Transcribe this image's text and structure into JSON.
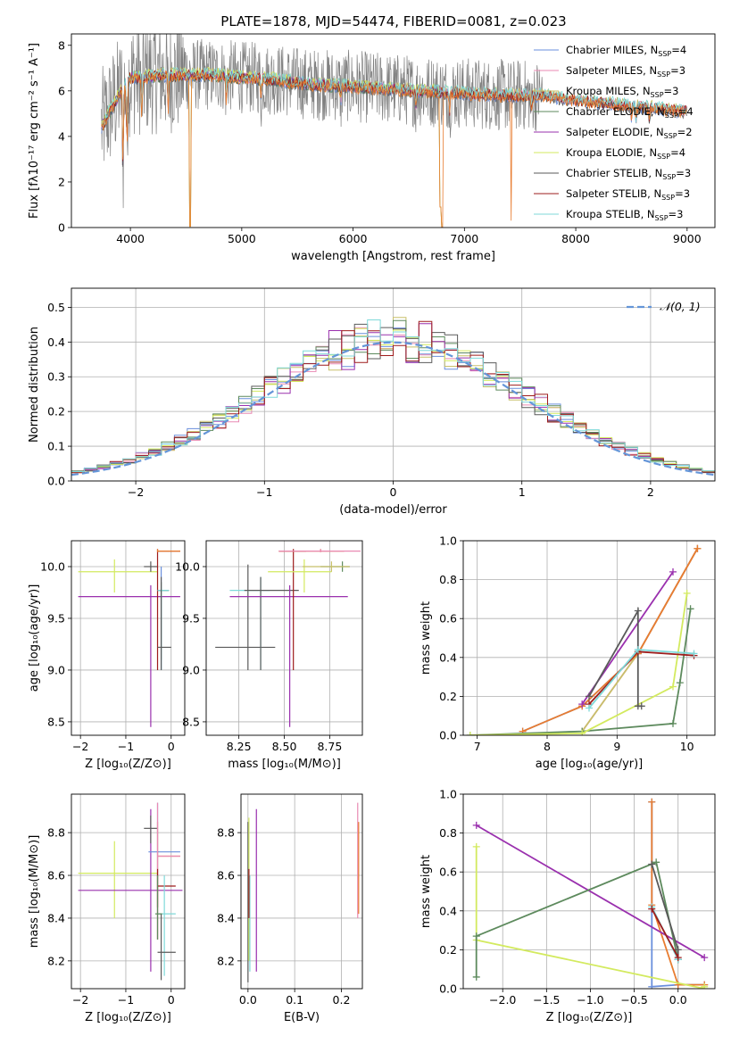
{
  "colors": {
    "chabrier_miles": "#6a8fdc",
    "salpeter_miles": "#e98ab3",
    "kroupa_miles": "#c8c06a",
    "chabrier_elodie": "#5d8a5d",
    "salpeter_elodie": "#9a30ae",
    "kroupa_elodie": "#d3ea5f",
    "chabrier_stelib": "#5a5a5a",
    "salpeter_stelib": "#9e1c1c",
    "kroupa_stelib": "#7fd9d9",
    "data": "#808080",
    "model": "#e87c30",
    "normal": "#6495d8",
    "grid": "#b0b0b0"
  },
  "chart_data": [
    {
      "id": "spectrum",
      "type": "line",
      "title": "PLATE=1878, MJD=54474, FIBERID=0081, z=0.023",
      "xlabel": "wavelength [Angstrom, rest frame]",
      "ylabel": "Flux [fλ10⁻¹⁷ erg cm⁻² s⁻¹ A⁻¹]",
      "xlim": [
        3470,
        9250
      ],
      "ylim": [
        0,
        8.5
      ],
      "x_ticks": [
        4000,
        5000,
        6000,
        7000,
        8000,
        9000
      ],
      "y_ticks": [
        0,
        2,
        4,
        6,
        8
      ],
      "grid": false,
      "legend_position": "top-right",
      "legend": [
        {
          "label": "Chabrier MILES, N",
          "sub": "SSP",
          "tail": "=4",
          "color_key": "chabrier_miles"
        },
        {
          "label": "Salpeter MILES, N",
          "sub": "SSP",
          "tail": "=3",
          "color_key": "salpeter_miles"
        },
        {
          "label": "Kroupa MILES, N",
          "sub": "SSP",
          "tail": "=3",
          "color_key": "kroupa_miles"
        },
        {
          "label": "Chabrier ELODIE, N",
          "sub": "SSP",
          "tail": "=4",
          "color_key": "chabrier_elodie"
        },
        {
          "label": "Salpeter ELODIE, N",
          "sub": "SSP",
          "tail": "=2",
          "color_key": "salpeter_elodie"
        },
        {
          "label": "Kroupa ELODIE, N",
          "sub": "SSP",
          "tail": "=4",
          "color_key": "kroupa_elodie"
        },
        {
          "label": "Chabrier STELIB, N",
          "sub": "SSP",
          "tail": "=3",
          "color_key": "chabrier_stelib"
        },
        {
          "label": "Salpeter STELIB, N",
          "sub": "SSP",
          "tail": "=3",
          "color_key": "salpeter_stelib"
        },
        {
          "label": "Kroupa STELIB, N",
          "sub": "SSP",
          "tail": "=3",
          "color_key": "kroupa_stelib"
        }
      ],
      "continuum": [
        [
          3740,
          5.6
        ],
        [
          3800,
          5.9
        ],
        [
          3900,
          6.3
        ],
        [
          4000,
          6.6
        ],
        [
          4100,
          6.6
        ],
        [
          4300,
          6.7
        ],
        [
          4500,
          6.7
        ],
        [
          4800,
          6.7
        ],
        [
          5000,
          6.6
        ],
        [
          5300,
          6.5
        ],
        [
          5600,
          6.3
        ],
        [
          6000,
          6.2
        ],
        [
          6300,
          6.1
        ],
        [
          6600,
          6.0
        ],
        [
          7000,
          5.9
        ],
        [
          7400,
          5.8
        ],
        [
          7700,
          5.8
        ],
        [
          8000,
          5.6
        ],
        [
          8400,
          5.4
        ],
        [
          8800,
          5.2
        ],
        [
          9000,
          5.1
        ]
      ],
      "absorption_features": [
        [
          3934,
          3.5
        ],
        [
          3969,
          3.0
        ],
        [
          4102,
          1.6
        ],
        [
          4340,
          1.4
        ],
        [
          4861,
          1.0
        ],
        [
          5175,
          0.8
        ],
        [
          5890,
          0.6
        ],
        [
          6563,
          0.6
        ],
        [
          6867,
          0.8
        ],
        [
          7600,
          0.8
        ],
        [
          8500,
          0.5
        ],
        [
          8542,
          0.6
        ],
        [
          8662,
          0.5
        ]
      ],
      "spikes": [
        [
          4535,
          0.05
        ],
        [
          6785,
          0.9
        ],
        [
          6800,
          0.0
        ],
        [
          7420,
          0.3
        ]
      ]
    },
    {
      "id": "residuals",
      "type": "histogram",
      "xlabel": "(data-model)/error",
      "ylabel": "Normed distribution",
      "xlim": [
        -2.5,
        2.5
      ],
      "ylim": [
        0,
        0.555
      ],
      "x_ticks": [
        -2,
        -1,
        0,
        1,
        2
      ],
      "y_ticks": [
        0.0,
        0.1,
        0.2,
        0.3,
        0.4,
        0.5
      ],
      "grid": true,
      "legend_position": "top-right",
      "legend": [
        {
          "label": "𝒩(0, 1)",
          "color_key": "normal"
        }
      ],
      "bin_width": 0.1,
      "bin_start": -2.5,
      "base_curve": "normal(0,1)",
      "series_keys": [
        "chabrier_miles",
        "salpeter_miles",
        "kroupa_miles",
        "chabrier_elodie",
        "salpeter_elodie",
        "kroupa_elodie",
        "chabrier_stelib",
        "salpeter_stelib",
        "kroupa_stelib"
      ]
    },
    {
      "id": "age_vs_z",
      "type": "errorbar",
      "xlabel": "Z [log₁₀(Z/Z⊙)]",
      "ylabel": "age  [log₁₀(age/yr)]",
      "xlim": [
        -2.2,
        0.3
      ],
      "ylim": [
        8.37,
        10.25
      ],
      "x_ticks": [
        -2,
        -1,
        0
      ],
      "y_ticks": [
        8.5,
        9.0,
        9.5,
        10.0
      ],
      "grid": true,
      "points": [
        {
          "key": "kroupa_elodie",
          "x": -1.25,
          "y": 9.95,
          "xl": -2.05,
          "xh": -0.3,
          "yl": 9.75,
          "yh": 10.07
        },
        {
          "key": "salpeter_elodie",
          "x": -0.45,
          "y": 9.71,
          "xl": -2.05,
          "xh": 0.2,
          "yl": 8.45,
          "yh": 9.82
        },
        {
          "key": "chabrier_stelib",
          "x": -0.45,
          "y": 10.0,
          "xl": -0.6,
          "xh": -0.3,
          "yl": 9.95,
          "yh": 10.05
        },
        {
          "key": "salpeter_stelib",
          "x": -0.3,
          "y": 10.15,
          "xl": -0.3,
          "xh": 0.2,
          "yl": 9.0,
          "yh": 10.17
        },
        {
          "key": "model",
          "x": -0.3,
          "y": 10.15,
          "xl": -0.3,
          "xh": 0.2,
          "yl": 10.14,
          "yh": 10.17
        },
        {
          "key": "chabrier_miles",
          "x": -0.22,
          "y": 9.77,
          "xl": -0.3,
          "xh": -0.05,
          "yl": 9.0,
          "yh": 10.0
        },
        {
          "key": "chabrier_elodie",
          "x": -0.22,
          "y": 9.77,
          "xl": -0.3,
          "xh": -0.05,
          "yl": 9.1,
          "yh": 9.85
        },
        {
          "key": "kroupa_stelib",
          "x": -0.22,
          "y": 9.77,
          "xl": -0.3,
          "xh": -0.05,
          "yl": 9.0,
          "yh": 9.8
        },
        {
          "key": "chabrier_stelib",
          "x": -0.22,
          "y": 9.22,
          "xl": -0.3,
          "xh": 0.0,
          "yl": 9.0,
          "yh": 9.9
        }
      ]
    },
    {
      "id": "age_vs_mass",
      "type": "errorbar",
      "xlabel": "mass [log₁₀(M/M⊙)]",
      "ylabel": "",
      "xlim": [
        8.07,
        8.93
      ],
      "ylim": [
        8.37,
        10.25
      ],
      "x_ticks": [
        8.25,
        8.5,
        8.75
      ],
      "y_ticks": [
        8.5,
        9.0,
        9.5,
        10.0
      ],
      "grid": true,
      "points": [
        {
          "key": "chabrier_stelib",
          "x": 8.3,
          "y": 9.22,
          "xl": 8.12,
          "xh": 8.45,
          "yl": 9.0,
          "yh": 10.02
        },
        {
          "key": "kroupa_stelib",
          "x": 8.37,
          "y": 9.77,
          "xl": 8.2,
          "xh": 8.42,
          "yl": 9.0,
          "yh": 9.9
        },
        {
          "key": "chabrier_stelib",
          "x": 8.37,
          "y": 9.77,
          "xl": 8.28,
          "xh": 8.58,
          "yl": 9.0,
          "yh": 9.9
        },
        {
          "key": "salpeter_elodie",
          "x": 8.53,
          "y": 9.71,
          "xl": 8.2,
          "xh": 8.85,
          "yl": 8.45,
          "yh": 9.82
        },
        {
          "key": "salpeter_stelib",
          "x": 8.55,
          "y": 10.15,
          "xl": 8.47,
          "xh": 8.62,
          "yl": 9.0,
          "yh": 10.17
        },
        {
          "key": "kroupa_elodie",
          "x": 8.61,
          "y": 9.95,
          "xl": 8.41,
          "xh": 8.76,
          "yl": 9.75,
          "yh": 10.07
        },
        {
          "key": "model",
          "x": 8.7,
          "y": 10.15,
          "xl": 8.47,
          "xh": 8.83,
          "yl": 10.14,
          "yh": 10.17
        },
        {
          "key": "salpeter_miles",
          "x": 8.7,
          "y": 10.15,
          "xl": 8.47,
          "xh": 8.92,
          "yl": 10.14,
          "yh": 10.17
        },
        {
          "key": "chabrier_elodie",
          "x": 8.82,
          "y": 10.0,
          "xl": 8.7,
          "xh": 8.86,
          "yl": 9.95,
          "yh": 10.05
        },
        {
          "key": "kroupa_miles",
          "x": 8.76,
          "y": 10.0,
          "xl": 8.6,
          "xh": 8.86,
          "yl": 9.95,
          "yh": 10.05
        }
      ]
    },
    {
      "id": "weight_vs_age",
      "type": "line",
      "xlabel": "age  [log₁₀(age/yr)]",
      "ylabel": "mass weight",
      "xlim": [
        6.8,
        10.4
      ],
      "ylim": [
        0.0,
        1.0
      ],
      "x_ticks": [
        7,
        8,
        9,
        10
      ],
      "y_ticks": [
        0.0,
        0.2,
        0.4,
        0.6,
        0.8,
        1.0
      ],
      "grid": true,
      "series": [
        {
          "key": "chabrier_miles",
          "x": [
            7.65,
            8.5,
            9.3,
            10.15
          ],
          "y": [
            0.02,
            0.15,
            0.42,
            0.96
          ]
        },
        {
          "key": "salpeter_miles",
          "x": [
            8.5,
            9.3,
            10.15
          ],
          "y": [
            0.02,
            0.42,
            0.96
          ]
        },
        {
          "key": "kroupa_miles",
          "x": [
            8.5,
            9.3,
            10.15
          ],
          "y": [
            0.02,
            0.42,
            0.96
          ]
        },
        {
          "key": "model",
          "x": [
            7.65,
            8.5,
            9.3,
            10.15
          ],
          "y": [
            0.02,
            0.15,
            0.42,
            0.96
          ]
        },
        {
          "key": "chabrier_elodie",
          "x": [
            6.9,
            8.5,
            9.8,
            9.9,
            10.05
          ],
          "y": [
            0.0,
            0.02,
            0.06,
            0.27,
            0.65
          ]
        },
        {
          "key": "salpeter_elodie",
          "x": [
            8.5,
            9.8
          ],
          "y": [
            0.16,
            0.84
          ]
        },
        {
          "key": "kroupa_elodie",
          "x": [
            6.9,
            8.5,
            9.8,
            10.0
          ],
          "y": [
            0.0,
            0.01,
            0.25,
            0.73
          ]
        },
        {
          "key": "chabrier_stelib",
          "x": [
            8.6,
            9.3,
            9.3,
            9.35
          ],
          "y": [
            0.2,
            0.64,
            0.15,
            0.15
          ]
        },
        {
          "key": "salpeter_stelib",
          "x": [
            8.6,
            9.3,
            10.1
          ],
          "y": [
            0.16,
            0.43,
            0.41
          ]
        },
        {
          "key": "kroupa_stelib",
          "x": [
            8.6,
            9.3,
            10.1
          ],
          "y": [
            0.14,
            0.44,
            0.42
          ]
        }
      ]
    },
    {
      "id": "mass_vs_z",
      "type": "errorbar",
      "xlabel": "Z [log₁₀(Z/Z⊙)]",
      "ylabel": "mass [log₁₀(M/M⊙)]",
      "xlim": [
        -2.2,
        0.3
      ],
      "ylim": [
        8.07,
        8.98
      ],
      "x_ticks": [
        -2,
        -1,
        0
      ],
      "y_ticks": [
        8.2,
        8.4,
        8.6,
        8.8
      ],
      "grid": true,
      "points": [
        {
          "key": "kroupa_elodie",
          "x": -1.25,
          "y": 8.61,
          "xl": -2.05,
          "xh": -0.3,
          "yl": 8.4,
          "yh": 8.76
        },
        {
          "key": "salpeter_elodie",
          "x": -0.45,
          "y": 8.53,
          "xl": -2.05,
          "xh": 0.25,
          "yl": 8.15,
          "yh": 8.91
        },
        {
          "key": "chabrier_stelib",
          "x": -0.45,
          "y": 8.82,
          "xl": -0.6,
          "xh": -0.3,
          "yl": 8.75,
          "yh": 8.88
        },
        {
          "key": "chabrier_miles",
          "x": -0.3,
          "y": 8.71,
          "xl": -0.5,
          "xh": 0.2,
          "yl": 8.3,
          "yh": 8.94
        },
        {
          "key": "model",
          "x": -0.3,
          "y": 8.69,
          "xl": -0.3,
          "xh": 0.2,
          "yl": 8.3,
          "yh": 8.85
        },
        {
          "key": "salpeter_miles",
          "x": -0.3,
          "y": 8.69,
          "xl": -0.3,
          "xh": 0.2,
          "yl": 8.3,
          "yh": 8.94
        },
        {
          "key": "salpeter_stelib",
          "x": -0.3,
          "y": 8.55,
          "xl": -0.3,
          "xh": 0.1,
          "yl": 8.45,
          "yh": 8.63
        },
        {
          "key": "kroupa_stelib",
          "x": -0.15,
          "y": 8.42,
          "xl": -0.3,
          "xh": 0.1,
          "yl": 8.13,
          "yh": 8.6
        },
        {
          "key": "chabrier_stelib",
          "x": -0.22,
          "y": 8.24,
          "xl": -0.3,
          "xh": 0.1,
          "yl": 8.11,
          "yh": 8.42
        },
        {
          "key": "chabrier_elodie",
          "x": -0.3,
          "y": 8.42,
          "xl": -0.35,
          "xh": -0.2,
          "yl": 8.3,
          "yh": 8.6
        }
      ]
    },
    {
      "id": "mass_vs_ebv",
      "type": "errorbar",
      "xlabel": "E(B-V)",
      "ylabel": "",
      "xlim": [
        -0.015,
        0.245
      ],
      "ylim": [
        8.07,
        8.98
      ],
      "x_ticks": [
        0.0,
        0.1,
        0.2
      ],
      "y_ticks": [
        8.2,
        8.4,
        8.6,
        8.8
      ],
      "grid": true,
      "points": [
        {
          "key": "chabrier_stelib",
          "x": 0.0,
          "y": 8.45,
          "xl": 0.0,
          "xh": 0.0,
          "yl": 8.1,
          "yh": 8.85
        },
        {
          "key": "kroupa_elodie",
          "x": 0.002,
          "y": 8.6,
          "xl": 0.002,
          "xh": 0.002,
          "yl": 8.2,
          "yh": 8.87
        },
        {
          "key": "kroupa_stelib",
          "x": 0.004,
          "y": 8.42,
          "xl": 0.004,
          "xh": 0.004,
          "yl": 8.15,
          "yh": 8.6
        },
        {
          "key": "salpeter_stelib",
          "x": 0.002,
          "y": 8.55,
          "xl": 0.002,
          "xh": 0.002,
          "yl": 8.4,
          "yh": 8.63
        },
        {
          "key": "salpeter_elodie",
          "x": 0.018,
          "y": 8.53,
          "xl": 0.018,
          "xh": 0.018,
          "yl": 8.15,
          "yh": 8.91
        },
        {
          "key": "salpeter_miles",
          "x": 0.235,
          "y": 8.69,
          "xl": 0.235,
          "xh": 0.235,
          "yl": 8.4,
          "yh": 8.94
        },
        {
          "key": "model",
          "x": 0.237,
          "y": 8.69,
          "xl": 0.237,
          "xh": 0.237,
          "yl": 8.42,
          "yh": 8.85
        }
      ]
    },
    {
      "id": "weight_vs_z",
      "type": "line",
      "xlabel": "Z [log₁₀(Z/Z⊙)]",
      "ylabel": "mass weight",
      "xlim": [
        -2.45,
        0.42
      ],
      "ylim": [
        0.0,
        1.0
      ],
      "x_ticks": [
        -2.0,
        -1.5,
        -1.0,
        -0.5,
        0.0
      ],
      "y_ticks": [
        0.0,
        0.2,
        0.4,
        0.6,
        0.8,
        1.0
      ],
      "grid": true,
      "series": [
        {
          "key": "chabrier_miles",
          "x": [
            -0.3,
            -0.3,
            0.0,
            0.3
          ],
          "y": [
            0.96,
            0.01,
            0.02,
            0.02
          ]
        },
        {
          "key": "model",
          "x": [
            -0.3,
            -0.3,
            0.0,
            0.3
          ],
          "y": [
            0.96,
            0.43,
            0.02,
            0.02
          ]
        },
        {
          "key": "salpeter_elodie",
          "x": [
            -2.3,
            0.3
          ],
          "y": [
            0.84,
            0.16
          ]
        },
        {
          "key": "kroupa_elodie",
          "x": [
            -2.3,
            -2.3,
            0.3,
            0.3
          ],
          "y": [
            0.73,
            0.25,
            0.0,
            0.01
          ]
        },
        {
          "key": "chabrier_elodie",
          "x": [
            -2.3,
            -2.3,
            -0.25,
            0.0
          ],
          "y": [
            0.06,
            0.27,
            0.65,
            0.15
          ]
        },
        {
          "key": "chabrier_stelib",
          "x": [
            -0.3,
            0.0,
            0.0
          ],
          "y": [
            0.64,
            0.2,
            0.15
          ]
        },
        {
          "key": "kroupa_stelib",
          "x": [
            -0.3,
            0.0
          ],
          "y": [
            0.42,
            0.15
          ]
        },
        {
          "key": "salpeter_stelib",
          "x": [
            -0.3,
            0.0
          ],
          "y": [
            0.41,
            0.16
          ]
        }
      ]
    }
  ]
}
